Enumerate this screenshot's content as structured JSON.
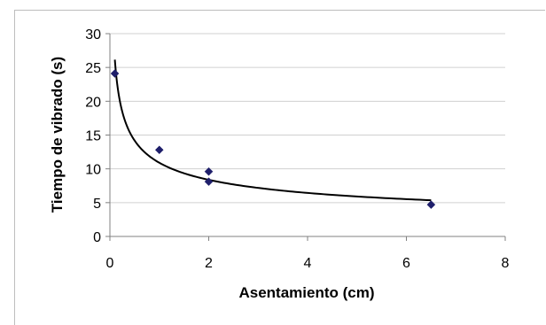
{
  "chart_data": {
    "type": "scatter",
    "title": "",
    "xlabel": "Asentamiento (cm)",
    "ylabel": "Tiempo de vibrado (s)",
    "xlim": [
      0,
      8
    ],
    "ylim": [
      0,
      30
    ],
    "x_ticks": [
      "0",
      "2",
      "4",
      "6",
      "8"
    ],
    "y_ticks": [
      "0",
      "5",
      "10",
      "15",
      "20",
      "25",
      "30"
    ],
    "grid": "horizontal",
    "legend": "none",
    "series": [
      {
        "values": [
          {
            "x": 0.1,
            "y": 24.1
          },
          {
            "x": 1.0,
            "y": 12.8
          },
          {
            "x": 2.0,
            "y": 9.6
          },
          {
            "x": 2.0,
            "y": 8.1
          },
          {
            "x": 6.5,
            "y": 4.7
          }
        ],
        "marker": "diamond",
        "color": "#1f1f6b"
      }
    ],
    "trendline": {
      "type": "power",
      "a": 10.9,
      "b": -0.38,
      "x_range": [
        0.1,
        6.5
      ],
      "color": "#000000"
    }
  }
}
